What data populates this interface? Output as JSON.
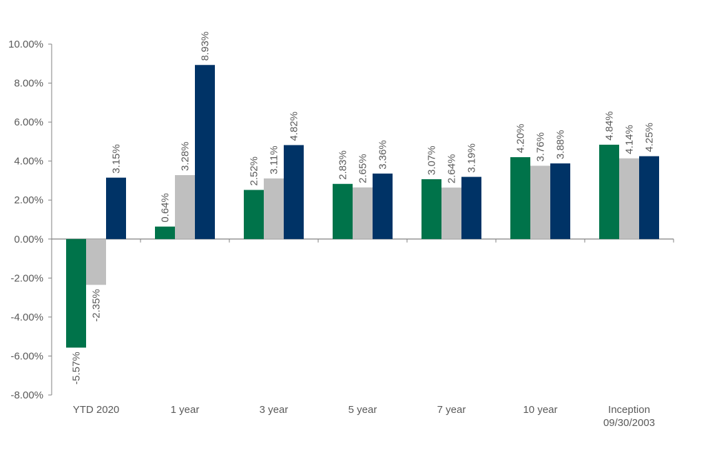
{
  "chart_data": {
    "type": "bar",
    "title": "",
    "xlabel": "",
    "ylabel": "",
    "ylim": [
      -8,
      10
    ],
    "ytick_step": 2,
    "ytick_labels": [
      "-8.00%",
      "-6.00%",
      "-4.00%",
      "-2.00%",
      "0.00%",
      "2.00%",
      "4.00%",
      "6.00%",
      "8.00%",
      "10.00%"
    ],
    "categories": [
      [
        "YTD 2020"
      ],
      [
        "1 year"
      ],
      [
        "3 year"
      ],
      [
        "5 year"
      ],
      [
        "7 year"
      ],
      [
        "10 year"
      ],
      [
        "Inception",
        "09/30/2003"
      ]
    ],
    "series": [
      {
        "color": "#00734A",
        "values": [
          -5.57,
          0.64,
          2.52,
          2.83,
          3.07,
          4.2,
          4.84
        ],
        "labels": [
          "-5.57%",
          "0.64%",
          "2.52%",
          "2.83%",
          "3.07%",
          "4.20%",
          "4.84%"
        ]
      },
      {
        "color": "#BFBFBF",
        "values": [
          -2.35,
          3.28,
          3.11,
          2.65,
          2.64,
          3.76,
          4.14
        ],
        "labels": [
          "-2.35%",
          "3.28%",
          "3.11%",
          "2.65%",
          "2.64%",
          "3.76%",
          "4.14%"
        ]
      },
      {
        "color": "#003366",
        "values": [
          3.15,
          8.93,
          4.82,
          3.36,
          3.19,
          3.88,
          4.25
        ],
        "labels": [
          "3.15%",
          "8.93%",
          "4.82%",
          "3.36%",
          "3.19%",
          "3.88%",
          "4.25%"
        ]
      }
    ],
    "legend": "none",
    "grid": false,
    "data_labels": "rotated vertical"
  }
}
